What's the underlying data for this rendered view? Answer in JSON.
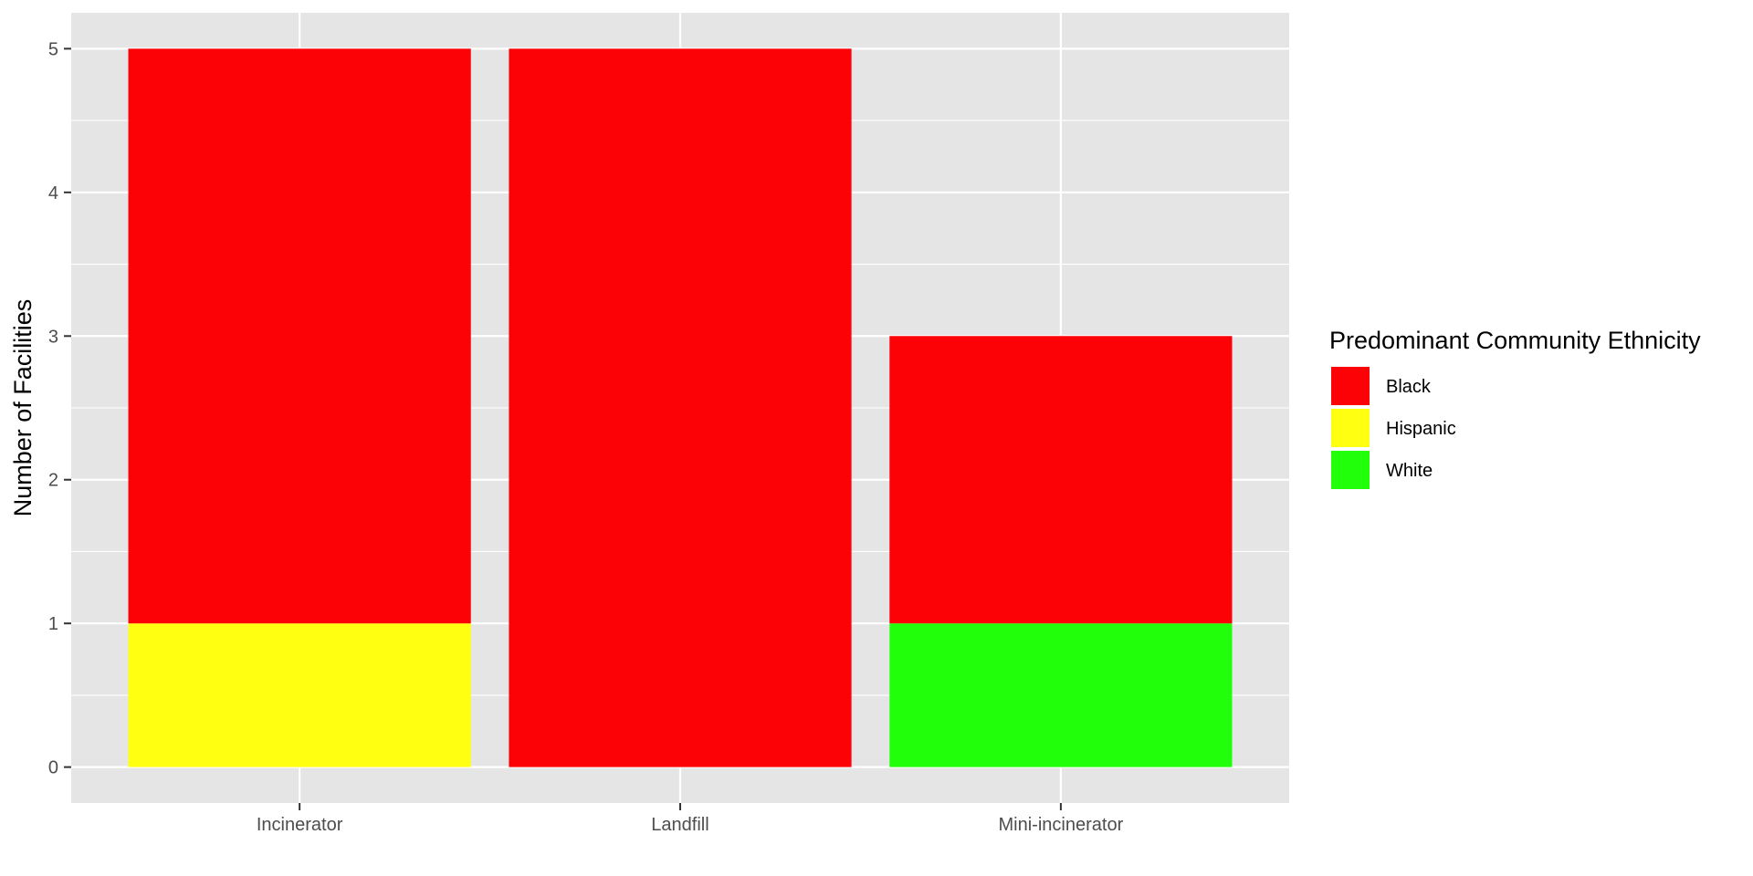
{
  "chart_data": {
    "type": "bar",
    "stacked": true,
    "categories": [
      "Incinerator",
      "Landfill",
      "Mini-incinerator"
    ],
    "series": [
      {
        "name": "Hispanic",
        "color": "#FFFF12",
        "values": [
          1,
          0,
          0
        ]
      },
      {
        "name": "White",
        "color": "#21FF0A",
        "values": [
          0,
          0,
          1
        ]
      },
      {
        "name": "Black",
        "color": "#FC0206",
        "values": [
          4,
          5,
          2
        ]
      }
    ],
    "title": "",
    "xlabel": "",
    "ylabel": "Number of Facilities",
    "ylim": [
      -0.25,
      5.25
    ],
    "yticks": [
      0,
      1,
      2,
      3,
      4,
      5
    ],
    "grid": true,
    "panel_background": "#E5E5E5",
    "legend": {
      "title": "Predominant Community Ethnicity",
      "placement": "right",
      "entries": [
        {
          "label": "Black",
          "color": "#FC0206"
        },
        {
          "label": "Hispanic",
          "color": "#FFFF12"
        },
        {
          "label": "White",
          "color": "#21FF0A"
        }
      ]
    }
  }
}
